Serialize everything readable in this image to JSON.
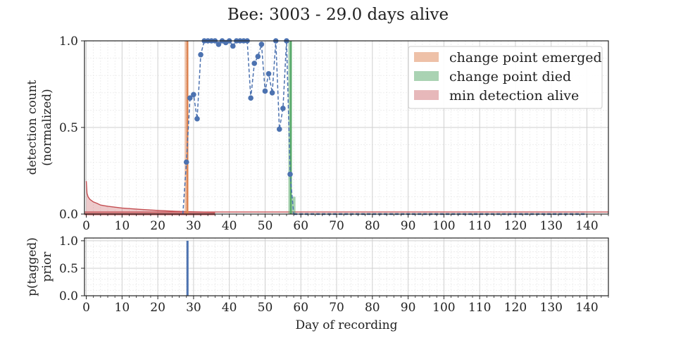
{
  "chart_data": [
    {
      "type": "line",
      "title": "Bee: 3003 - 29.0 days alive",
      "ylabel": [
        "detection count",
        "(normalized)"
      ],
      "xlim": [
        -0.5,
        146
      ],
      "ylim": [
        0,
        1.0
      ],
      "xticks": [
        0,
        10,
        20,
        30,
        40,
        50,
        60,
        70,
        80,
        90,
        100,
        110,
        120,
        130,
        140
      ],
      "yticks": [
        0.0,
        0.5,
        1.0
      ],
      "ytick_labels": [
        "0.0",
        "0.5",
        "1.0"
      ],
      "grid": true,
      "legend_position": "top-right",
      "colors": {
        "emerged": "#dd8452",
        "died": "#55a868",
        "min_alive": "#c44e52",
        "detections": "#4c72b0"
      },
      "legend": [
        "change point emerged",
        "change point died",
        "min detection alive"
      ],
      "series": [
        {
          "name": "detections",
          "x": [
            28,
            29,
            30,
            31,
            32,
            33,
            34,
            35,
            36,
            37,
            38,
            39,
            40,
            41,
            42,
            43,
            44,
            45,
            46,
            47,
            48,
            49,
            50,
            51,
            52,
            53,
            54,
            55,
            56,
            57
          ],
          "y": [
            0.3,
            0.67,
            0.69,
            0.55,
            0.92,
            1.0,
            1.0,
            1.0,
            1.0,
            0.98,
            1.0,
            0.99,
            1.0,
            0.97,
            1.0,
            1.0,
            1.0,
            1.0,
            0.67,
            0.87,
            0.91,
            0.98,
            0.71,
            0.81,
            0.7,
            1.0,
            0.49,
            0.61,
            1.0,
            0.23
          ]
        },
        {
          "name": "min detection alive",
          "x": [
            0,
            0.2,
            0.5,
            1,
            2,
            3,
            4,
            6,
            8,
            10,
            15,
            20,
            25,
            30,
            36
          ],
          "y": [
            0.19,
            0.12,
            0.1,
            0.085,
            0.07,
            0.062,
            0.052,
            0.045,
            0.04,
            0.035,
            0.027,
            0.021,
            0.016,
            0.013,
            0.01
          ]
        }
      ],
      "change_point_emerged": 28.3,
      "change_point_died": 57.2,
      "min_detection_alive_level": 0.012,
      "emerged_bars": [
        {
          "x": 28,
          "y": 1.0
        }
      ],
      "died_bars": [
        {
          "x": 57,
          "y": 1.0
        },
        {
          "x": 58,
          "y": 0.1
        }
      ],
      "zero_line_from": 58,
      "zero_line_to": 140
    },
    {
      "type": "bar",
      "ylabel": [
        "p(tagged)",
        "prior"
      ],
      "xlabel": "Day of recording",
      "xlim": [
        -0.5,
        146
      ],
      "ylim": [
        0,
        1.05
      ],
      "xticks": [
        0,
        10,
        20,
        30,
        40,
        50,
        60,
        70,
        80,
        90,
        100,
        110,
        120,
        130,
        140
      ],
      "yticks": [
        0.0,
        0.5,
        1.0
      ],
      "ytick_labels": [
        "0.0",
        "0.5",
        "1.0"
      ],
      "grid": true,
      "bars": [
        {
          "x": 28.3,
          "y": 1.0
        }
      ]
    }
  ]
}
